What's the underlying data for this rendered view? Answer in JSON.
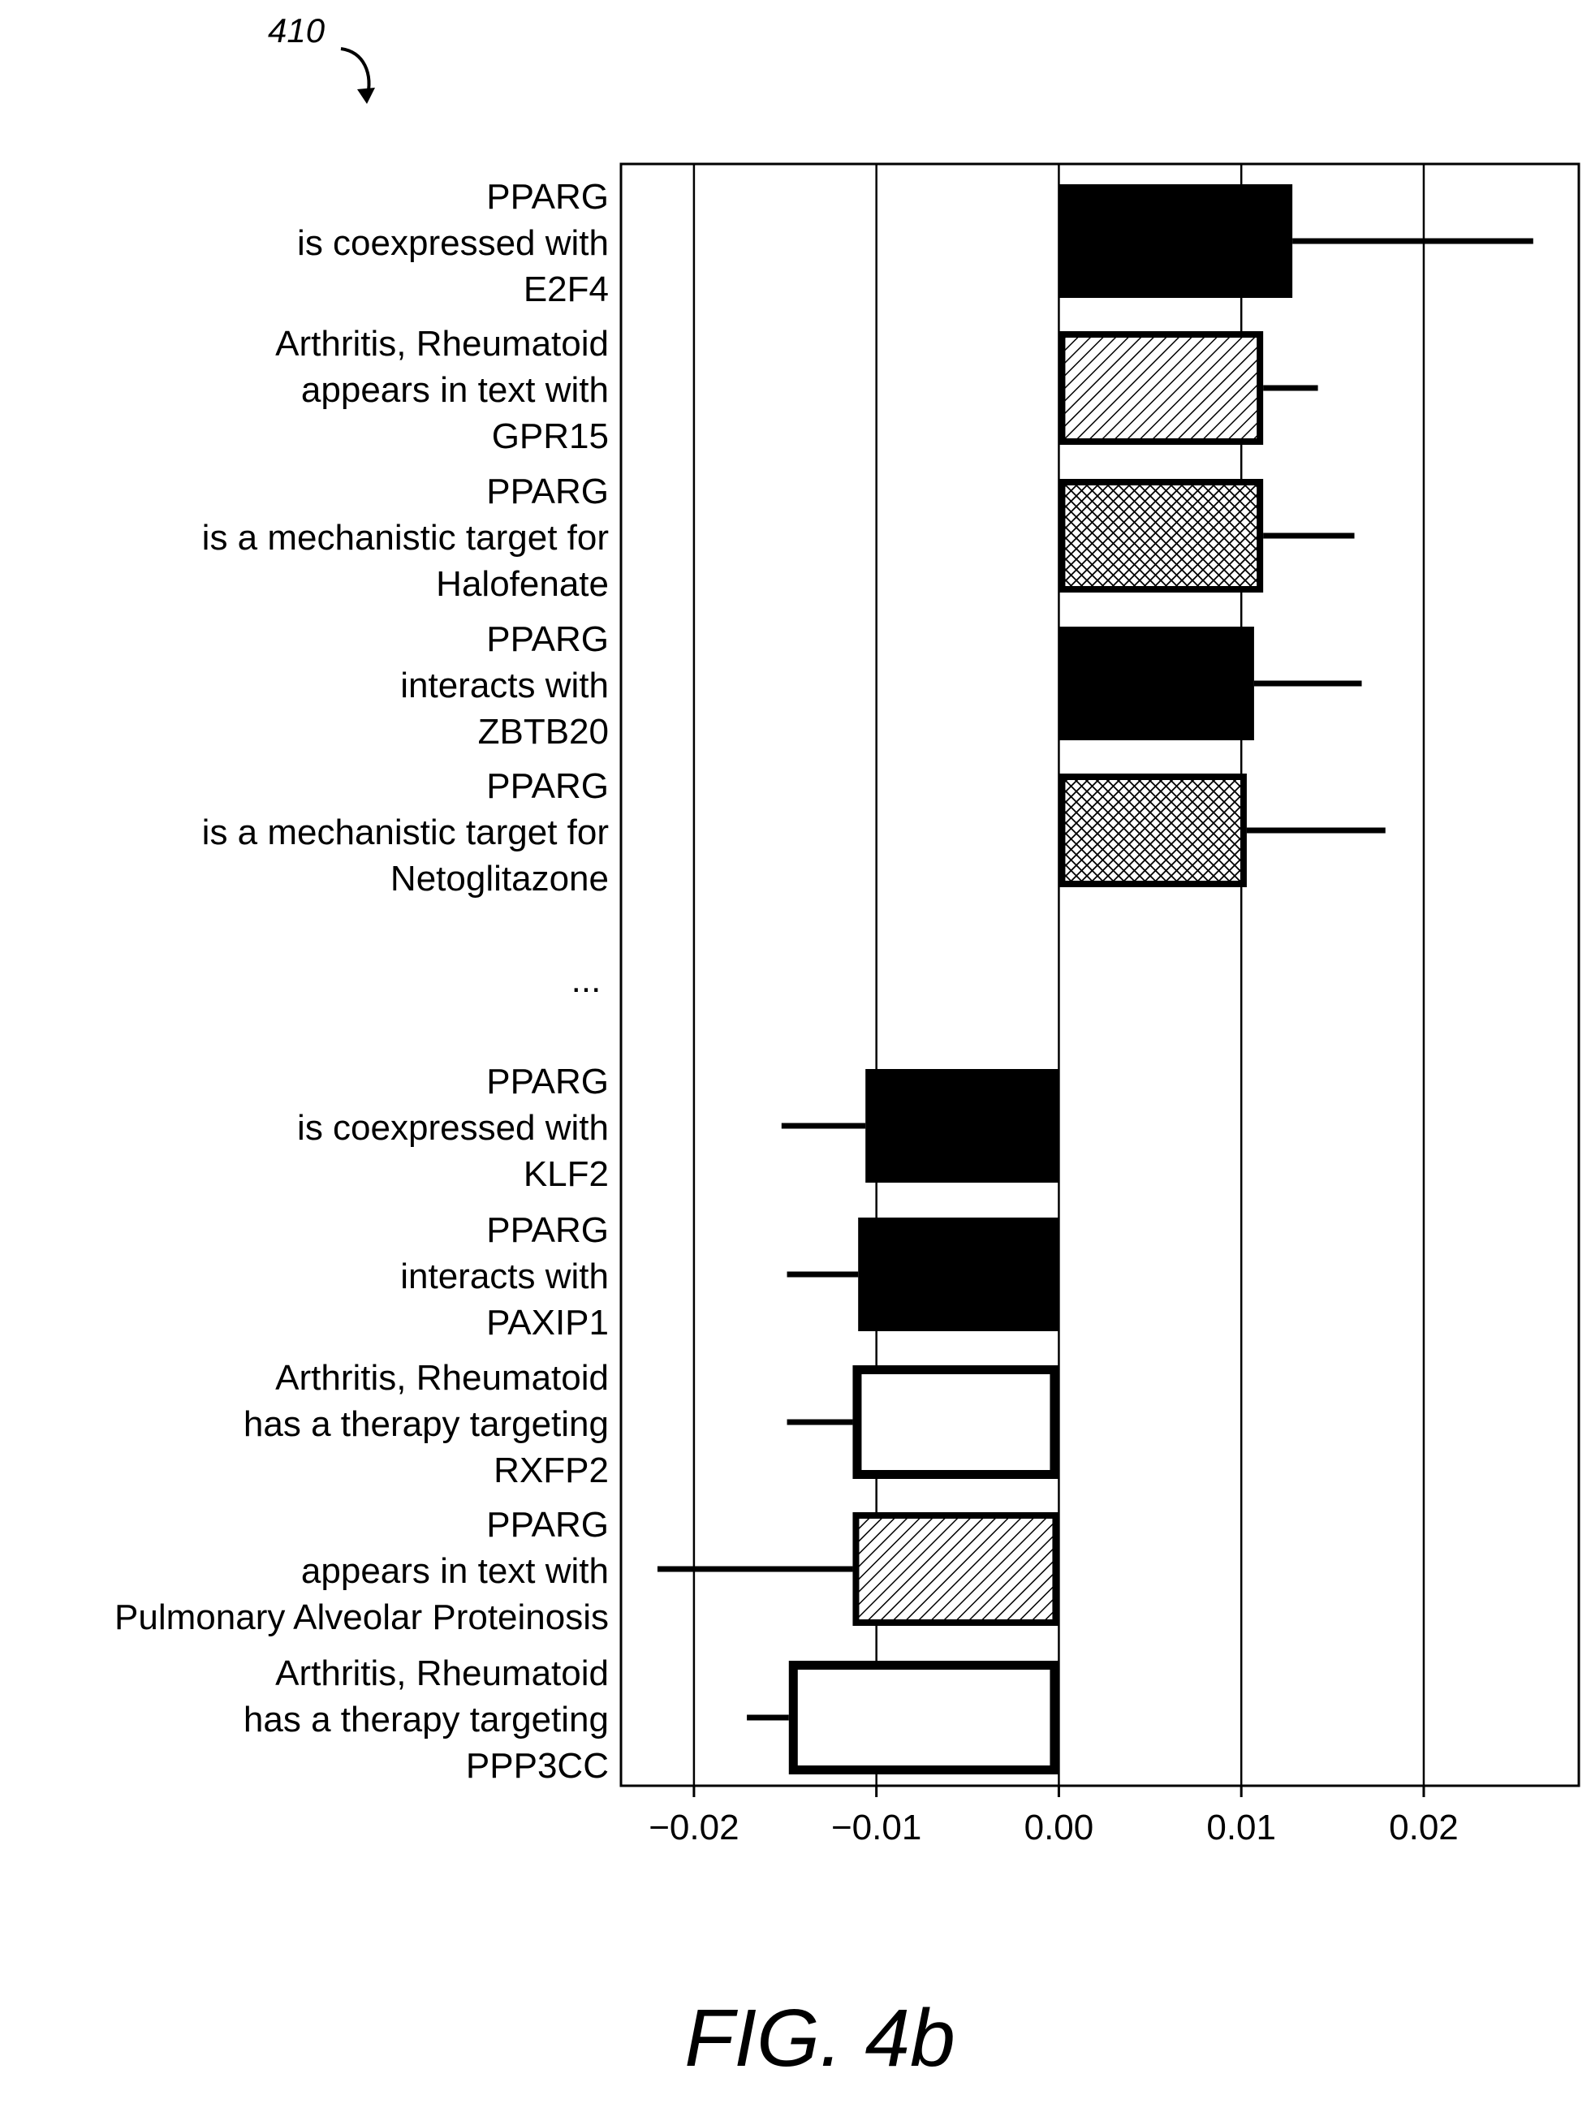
{
  "figure": {
    "reference_numeral": "410",
    "caption": "FIG. 4b"
  },
  "chart_data": {
    "type": "bar",
    "orientation": "horizontal",
    "title": "",
    "xlabel": "",
    "ylabel": "",
    "xlim": [
      -0.024,
      0.0285
    ],
    "x_ticks": [
      -0.02,
      -0.01,
      0.0,
      0.01,
      0.02
    ],
    "x_tick_labels": [
      "−0.02",
      "−0.01",
      "0.00",
      "0.01",
      "0.02"
    ],
    "grid": "vertical lines at ticks",
    "legend": "none",
    "ellipsis_label": "...",
    "categories": [
      [
        "PPARG",
        "is coexpressed with",
        "E2F4"
      ],
      [
        "Arthritis, Rheumatoid",
        "appears in text with",
        "GPR15"
      ],
      [
        "PPARG",
        "is a mechanistic target for",
        "Halofenate"
      ],
      [
        "PPARG",
        "interacts with",
        "ZBTB20"
      ],
      [
        "PPARG",
        "is a mechanistic target for",
        "Netoglitazone"
      ],
      [
        "PPARG",
        "is coexpressed with",
        "KLF2"
      ],
      [
        "PPARG",
        "interacts with",
        "PAXIP1"
      ],
      [
        "Arthritis, Rheumatoid",
        "has a therapy targeting",
        "RXFP2"
      ],
      [
        "PPARG",
        "appears in text with",
        "Pulmonary Alveolar Proteinosis"
      ],
      [
        "Arthritis, Rheumatoid",
        "has a therapy targeting",
        "PPP3CC"
      ]
    ],
    "values": [
      0.0128,
      0.0112,
      0.0112,
      0.0107,
      0.0103,
      -0.0106,
      -0.011,
      -0.0113,
      -0.0113,
      -0.0148
    ],
    "error_ends": [
      0.026,
      0.0142,
      0.0162,
      0.0166,
      0.0179,
      -0.0152,
      -0.0149,
      -0.0149,
      -0.022,
      -0.0171
    ],
    "fills": [
      "solid",
      "diagonal",
      "crosshatch",
      "solid",
      "crosshatch",
      "solid",
      "solid",
      "empty",
      "diagonal",
      "empty"
    ]
  }
}
